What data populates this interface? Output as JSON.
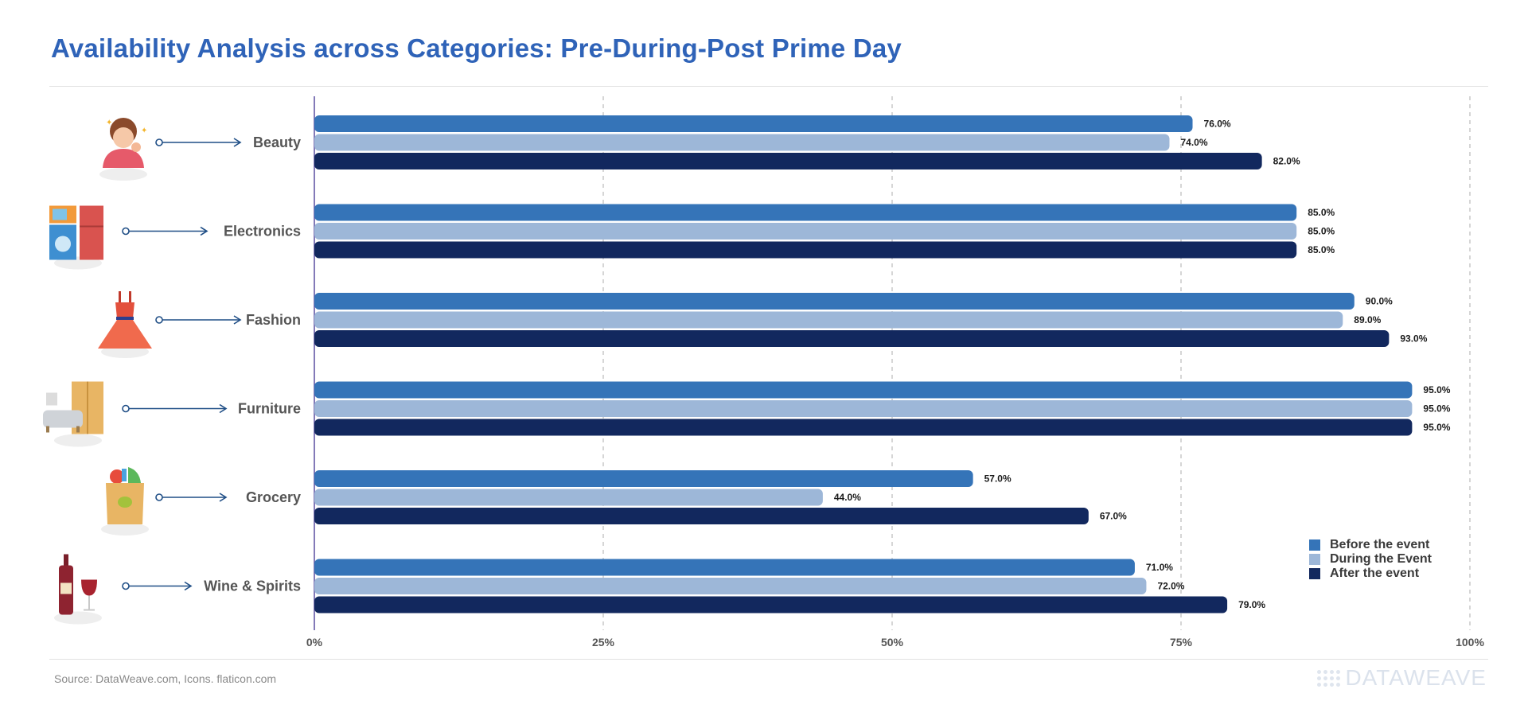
{
  "title": "Availability Analysis across Categories: Pre-During-Post Prime Day",
  "source": "Source: DataWeave.com, Icons. flaticon.com",
  "brand": "DATAWEAVE",
  "colors": {
    "title": "#2f63b8",
    "before": "#3574b8",
    "during": "#9db7d8",
    "after": "#12285e",
    "connector": "#1f4e86"
  },
  "chart_data": {
    "type": "bar",
    "orientation": "horizontal",
    "title": "Availability Analysis across Categories: Pre-During-Post Prime Day",
    "categories": [
      "Beauty",
      "Electronics",
      "Fashion",
      "Furniture",
      "Grocery",
      "Wine & Spirits"
    ],
    "category_icons": [
      "beauty-woman-icon",
      "appliances-icon",
      "dress-icon",
      "furniture-icon",
      "grocery-bag-icon",
      "wine-icon"
    ],
    "series": [
      {
        "name": "Before the event",
        "values": [
          76.0,
          85.0,
          90.0,
          95.0,
          57.0,
          71.0
        ]
      },
      {
        "name": "During the Event",
        "values": [
          74.0,
          85.0,
          89.0,
          95.0,
          44.0,
          72.0
        ]
      },
      {
        "name": "After the event",
        "values": [
          82.0,
          85.0,
          93.0,
          95.0,
          67.0,
          79.0
        ]
      }
    ],
    "value_labels": [
      [
        "76.0%",
        "85.0%",
        "90.0%",
        "95.0%",
        "57.0%",
        "71.0%"
      ],
      [
        "74.0%",
        "85.0%",
        "89.0%",
        "95.0%",
        "44.0%",
        "72.0%"
      ],
      [
        "82.0%",
        "85.0%",
        "93.0%",
        "95.0%",
        "67.0%",
        "79.0%"
      ]
    ],
    "xlim": [
      0,
      100
    ],
    "x_ticks": [
      0,
      25,
      50,
      75,
      100
    ],
    "x_tick_labels": [
      "0%",
      "25%",
      "50%",
      "75%",
      "100%"
    ],
    "grid": "vertical dashed",
    "legend_position": "bottom-right"
  }
}
